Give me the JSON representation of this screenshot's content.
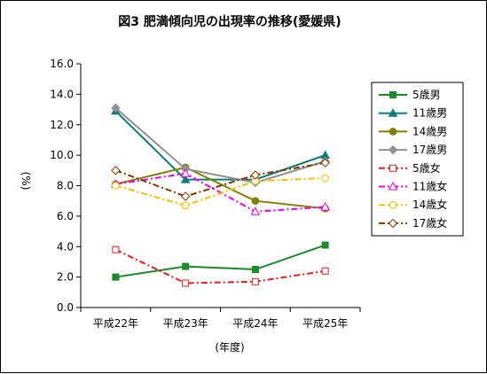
{
  "chart_data": {
    "type": "line",
    "title": "図3 肥満傾向児の出現率の推移(愛媛県)",
    "xlabel": "(年度)",
    "ylabel": "(%)",
    "ylim": [
      0,
      16
    ],
    "ytick_step": 2,
    "categories": [
      "平成22年",
      "平成23年",
      "平成24年",
      "平成25年"
    ],
    "legend_position": "right",
    "grid": false,
    "series": [
      {
        "name": "5歳男",
        "values": [
          2.0,
          2.7,
          2.5,
          4.1
        ],
        "color": "#1a8a2a",
        "marker": "square",
        "dash": "solid"
      },
      {
        "name": "11歳男",
        "values": [
          12.9,
          8.4,
          8.4,
          10.0
        ],
        "color": "#127a7a",
        "marker": "triangle",
        "dash": "solid"
      },
      {
        "name": "14歳男",
        "values": [
          8.1,
          9.2,
          7.0,
          6.5
        ],
        "color": "#808000",
        "marker": "circle",
        "dash": "solid"
      },
      {
        "name": "17歳男",
        "values": [
          13.1,
          9.1,
          8.2,
          9.6
        ],
        "color": "#909090",
        "marker": "diamond",
        "dash": "solid"
      },
      {
        "name": "5歳女",
        "values": [
          3.8,
          1.6,
          1.7,
          2.4
        ],
        "color": "#e02020",
        "marker": "square-open",
        "dash": "dashdot"
      },
      {
        "name": "11歳女",
        "values": [
          8.1,
          8.8,
          6.3,
          6.6
        ],
        "color": "#ee00ee",
        "marker": "triangle-open",
        "dash": "dashdot"
      },
      {
        "name": "14歳女",
        "values": [
          8.0,
          6.7,
          8.3,
          8.5
        ],
        "color": "#f0c000",
        "marker": "circle-open",
        "dash": "dashdot"
      },
      {
        "name": "17歳女",
        "values": [
          9.0,
          7.3,
          8.7,
          9.5
        ],
        "color": "#7a3a00",
        "marker": "diamond-open",
        "dash": "dashdot"
      }
    ]
  }
}
